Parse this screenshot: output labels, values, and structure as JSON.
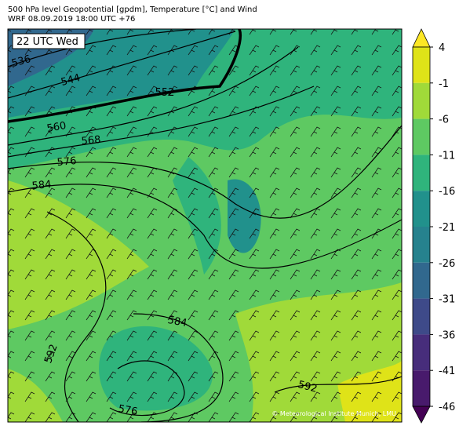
{
  "header": {
    "title": "500 hPa level Geopotential [gpdm], Temperature [°C] and Wind",
    "subtitle": "WRF 08.09.2019 18:00 UTC +76"
  },
  "map": {
    "time_label": "22 UTC Wed",
    "contour_labels": [
      "536",
      "544",
      "552",
      "560",
      "568",
      "576",
      "584",
      "584",
      "592",
      "592",
      "576"
    ],
    "credit": "© Meteorological Institute Munich, LMU"
  },
  "colorbar": {
    "ticks": [
      4,
      -1,
      -6,
      -11,
      -16,
      -21,
      -26,
      -31,
      -36,
      -41,
      -46
    ],
    "colors": [
      "#fde725",
      "#dfe318",
      "#a0da39",
      "#5ec962",
      "#2fb47c",
      "#21918c",
      "#26828e",
      "#31688e",
      "#3e4a89",
      "#472d7b",
      "#481a6c",
      "#440154"
    ]
  }
}
